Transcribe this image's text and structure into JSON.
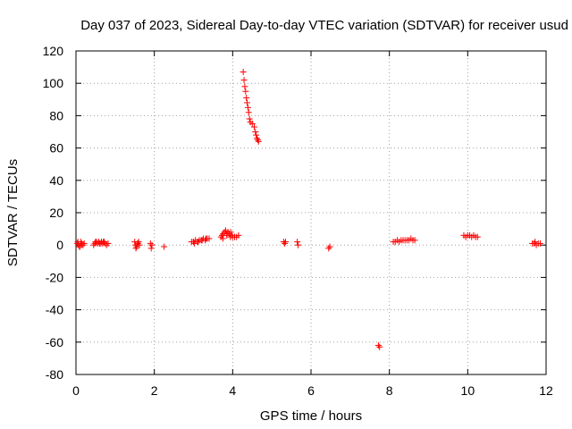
{
  "chart_data": {
    "type": "scatter",
    "title": "Day 037 of 2023, Sidereal Day-to-day VTEC variation (SDTVAR) for receiver usud",
    "xlabel": "GPS time / hours",
    "ylabel": "SDTVAR / TECUs",
    "xlim": [
      0,
      12
    ],
    "ylim": [
      -80,
      120
    ],
    "xticks": [
      0,
      2,
      4,
      6,
      8,
      10,
      12
    ],
    "yticks": [
      -80,
      -60,
      -40,
      -20,
      0,
      20,
      40,
      60,
      80,
      100,
      120
    ],
    "grid": true,
    "marker": "+",
    "color": "#ff0000",
    "series": [
      {
        "name": "SDTVAR",
        "x": [
          0.03,
          0.06,
          0.09,
          0.12,
          0.15,
          0.18,
          0.21,
          0.05,
          0.1,
          0.14,
          0.45,
          0.48,
          0.52,
          0.55,
          0.58,
          0.62,
          0.65,
          0.68,
          0.72,
          0.75,
          0.78,
          0.82,
          0.5,
          0.6,
          0.7,
          1.5,
          1.52,
          1.55,
          1.58,
          1.6,
          1.62,
          1.53,
          1.57,
          1.9,
          1.92,
          1.94,
          2.25,
          2.95,
          3.0,
          3.05,
          3.1,
          3.15,
          3.2,
          3.25,
          3.3,
          3.35,
          3.4,
          3.02,
          3.12,
          3.22,
          3.32,
          3.7,
          3.73,
          3.76,
          3.79,
          3.82,
          3.85,
          3.88,
          3.91,
          3.94,
          3.97,
          4.0,
          4.05,
          4.1,
          4.15,
          3.75,
          3.85,
          3.95,
          4.05,
          4.27,
          4.29,
          4.31,
          4.33,
          4.35,
          4.37,
          4.39,
          4.41,
          4.43,
          4.45,
          4.5,
          4.55,
          4.58,
          4.6,
          4.62,
          4.64,
          4.66,
          5.3,
          5.33,
          5.35,
          5.65,
          5.67,
          6.45,
          6.48,
          7.72,
          7.75,
          8.1,
          8.15,
          8.2,
          8.25,
          8.3,
          8.35,
          8.4,
          8.45,
          8.5,
          8.55,
          8.6,
          8.65,
          9.9,
          9.95,
          10.0,
          10.05,
          10.1,
          10.15,
          10.2,
          10.25,
          11.65,
          11.7,
          11.75,
          11.8,
          11.85,
          11.72
        ],
        "y": [
          1,
          0,
          -1,
          2,
          1,
          0,
          1,
          2,
          -1,
          0,
          0,
          1,
          2,
          1,
          2,
          1,
          2,
          1,
          2,
          1,
          0,
          1,
          2,
          1,
          2,
          2,
          0,
          -1,
          1,
          2,
          0,
          -2,
          1,
          1,
          -2,
          0,
          -1,
          2,
          2,
          3,
          2,
          3,
          3,
          4,
          3,
          4,
          4,
          1,
          2,
          3,
          4,
          5,
          6,
          7,
          8,
          9,
          6,
          8,
          7,
          5,
          6,
          5,
          5,
          5,
          6,
          4,
          7,
          8,
          5,
          107,
          102,
          98,
          95,
          91,
          88,
          85,
          82,
          78,
          76,
          75,
          73,
          70,
          68,
          66,
          65,
          64,
          2,
          1,
          2,
          2,
          0,
          -2,
          -1,
          -62,
          -63,
          2,
          2,
          3,
          2,
          3,
          3,
          3,
          3,
          3,
          4,
          3,
          3,
          6,
          5,
          6,
          6,
          5,
          6,
          5,
          5,
          1,
          1,
          0,
          1,
          1,
          2
        ]
      }
    ]
  }
}
